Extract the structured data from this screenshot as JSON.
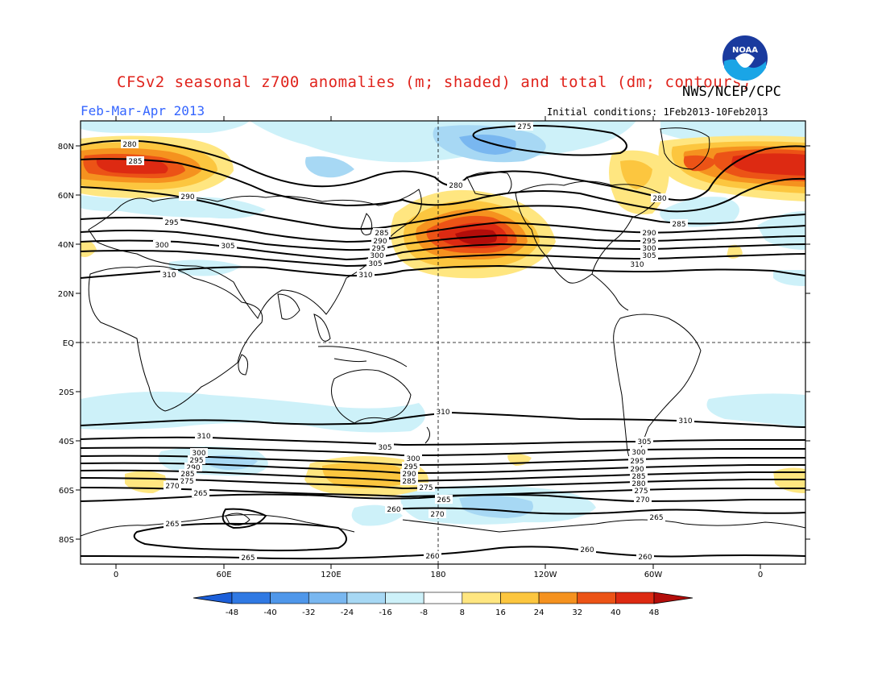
{
  "header": {
    "title": "CFSv2 seasonal z700 anomalies (m; shaded) and total (dm; contours)",
    "agency": "NWS/NCEP/CPC",
    "period": "Feb-Mar-Apr 2013",
    "initial_conditions": "Initial conditions: 1Feb2013-10Feb2013",
    "logo_text": "NOAA"
  },
  "axes": {
    "lat_labels": [
      "80N",
      "60N",
      "40N",
      "20N",
      "EQ",
      "20S",
      "40S",
      "60S",
      "80S"
    ],
    "lon_labels": [
      "0",
      "60E",
      "120E",
      "180",
      "120W",
      "60W",
      "0"
    ]
  },
  "colorbar": {
    "ticks": [
      "-48",
      "-40",
      "-32",
      "-24",
      "-16",
      "-8",
      "8",
      "16",
      "24",
      "32",
      "40",
      "48"
    ],
    "colors": [
      "#1c5fd9",
      "#3079e3",
      "#4f97ea",
      "#79b7f0",
      "#a7d8f4",
      "#cdf1f9",
      "#ffffff",
      "#ffe680",
      "#fcc63f",
      "#f5921f",
      "#ec5316",
      "#dd2a12",
      "#b30d0a"
    ]
  },
  "contour_labels": {
    "nh": [
      "275",
      "280",
      "285",
      "290",
      "295",
      "300",
      "305",
      "310"
    ],
    "sh": [
      "310",
      "305",
      "300",
      "295",
      "290",
      "285",
      "280",
      "275",
      "270",
      "265",
      "260"
    ]
  }
}
